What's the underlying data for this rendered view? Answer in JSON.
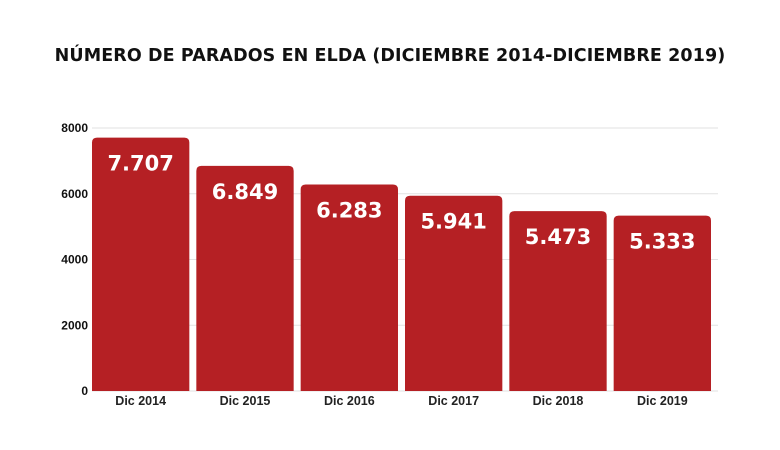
{
  "chart_data": {
    "type": "bar",
    "title": "NÚMERO DE PARADOS EN ELDA (DICIEMBRE 2014-DICIEMBRE 2019)",
    "categories": [
      "Dic 2014",
      "Dic 2015",
      "Dic 2016",
      "Dic 2017",
      "Dic 2018",
      "Dic 2019"
    ],
    "values": [
      7707,
      6849,
      6283,
      5941,
      5473,
      5333
    ],
    "data_labels": [
      "7.707",
      "6.849",
      "6.283",
      "5.941",
      "5.473",
      "5.333"
    ],
    "yticks": [
      "0",
      "2000",
      "4000",
      "6000",
      "8000"
    ],
    "ylim": [
      0,
      8000
    ],
    "xlabel": "",
    "ylabel": "",
    "grid": true,
    "bar_color": "#b52024"
  }
}
